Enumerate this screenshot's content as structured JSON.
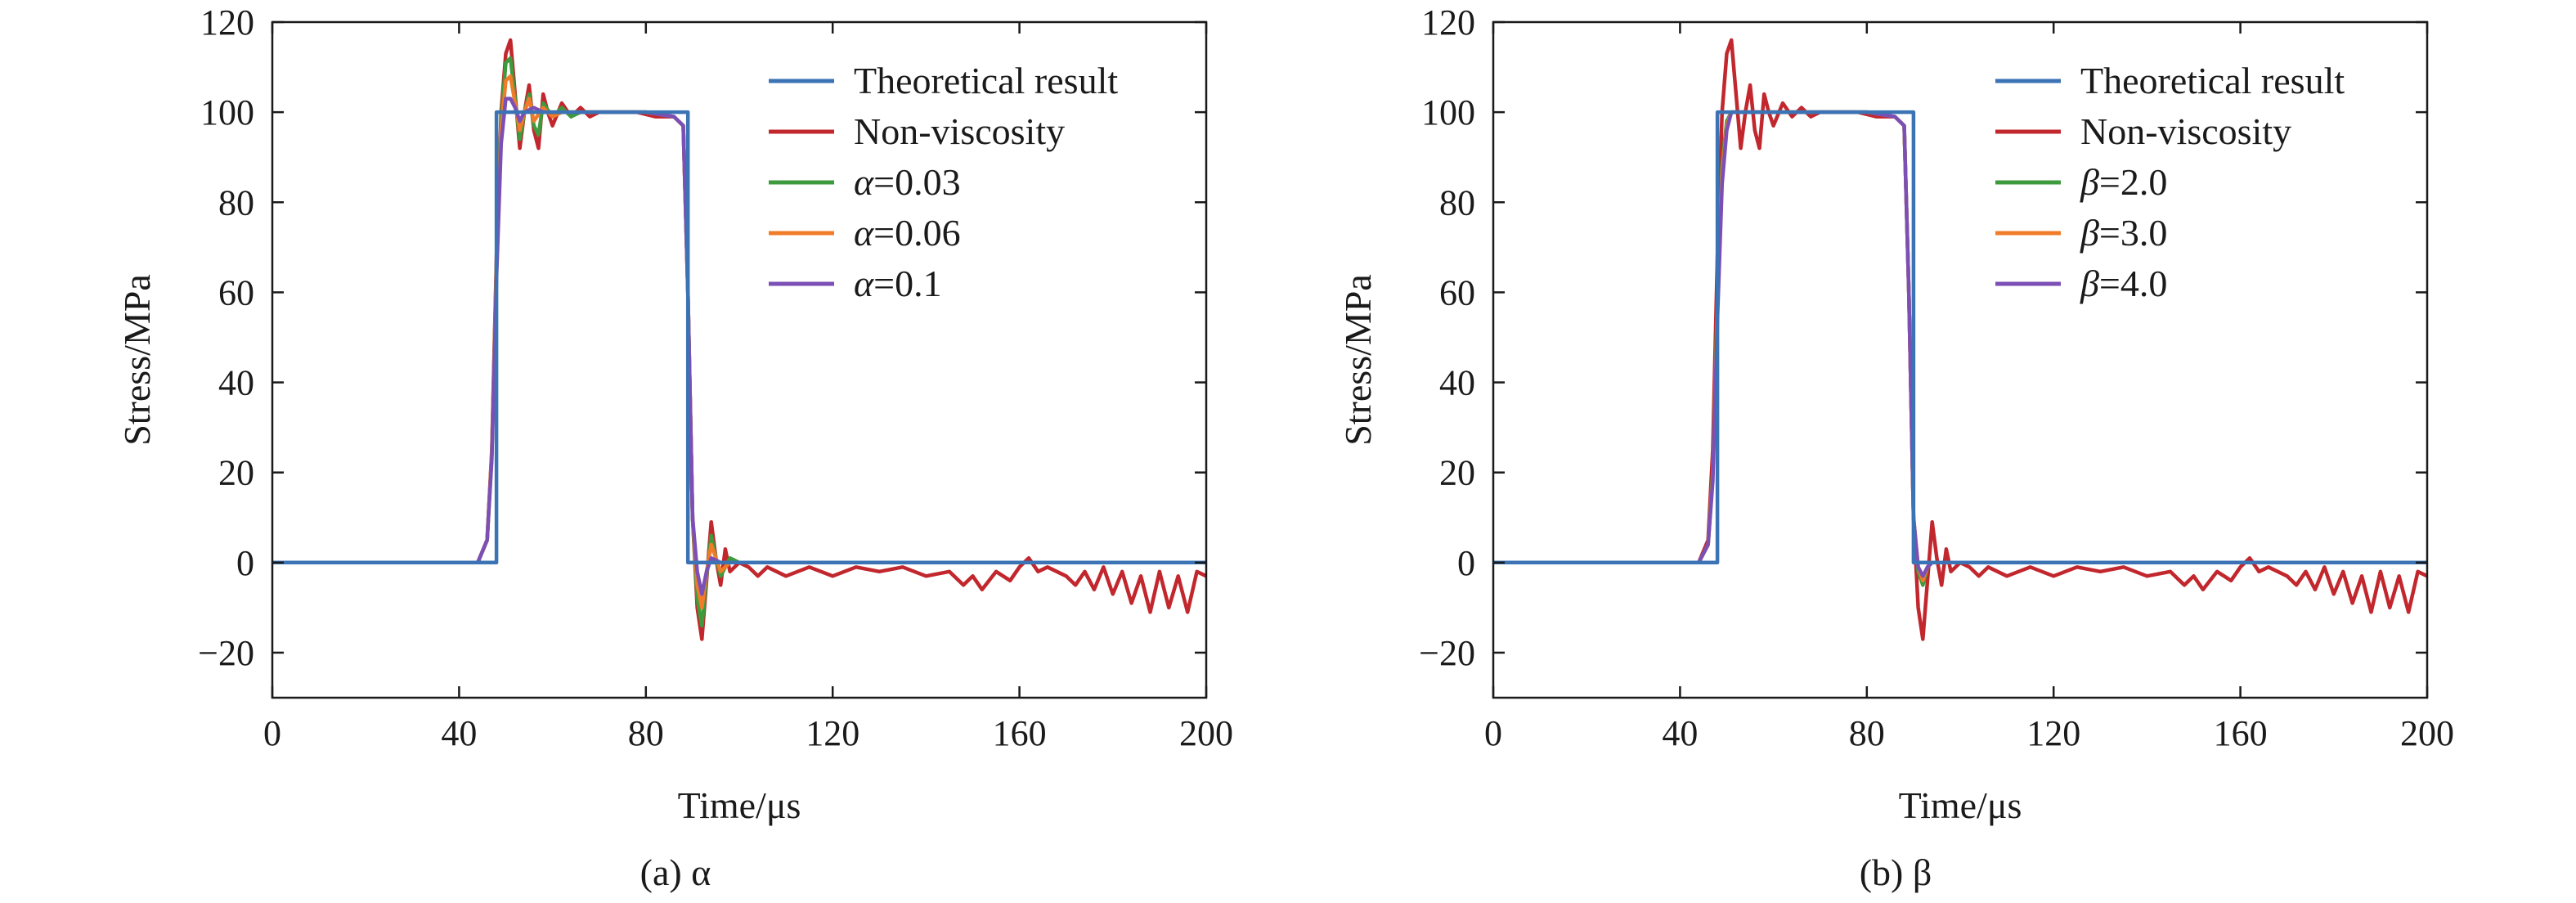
{
  "chart_data": [
    {
      "type": "line",
      "caption": "(a) α",
      "xlabel": "Time/μs",
      "ylabel": "Stress/MPa",
      "xlim": [
        0,
        200
      ],
      "ylim": [
        -30,
        120
      ],
      "xticks": [
        0,
        40,
        80,
        120,
        160,
        200
      ],
      "yticks": [
        -20,
        0,
        20,
        40,
        60,
        80,
        100,
        120
      ],
      "legend_position": "top-right",
      "grid": false,
      "series": [
        {
          "name": "Theoretical result",
          "color": "#3b73b4",
          "x": [
            0,
            48,
            48,
            89,
            89,
            200
          ],
          "y": [
            0,
            0,
            100,
            100,
            0,
            0
          ]
        },
        {
          "name": "Non-viscosity",
          "color": "#c1272d",
          "x": [
            0,
            44,
            46,
            47,
            48,
            49,
            50,
            51,
            52,
            53,
            54,
            55,
            56,
            57,
            58,
            59,
            60,
            62,
            64,
            66,
            68,
            70,
            74,
            78,
            82,
            86,
            88,
            89,
            90,
            91,
            92,
            93,
            94,
            95,
            96,
            97,
            98,
            100,
            102,
            104,
            106,
            110,
            115,
            120,
            125,
            130,
            135,
            140,
            145,
            148,
            150,
            152,
            155,
            158,
            160,
            162,
            164,
            166,
            170,
            172,
            174,
            176,
            178,
            180,
            182,
            184,
            186,
            188,
            190,
            192,
            194,
            196,
            198,
            200
          ],
          "y": [
            0,
            0,
            5,
            25,
            68,
            100,
            113,
            116,
            104,
            92,
            100,
            106,
            96,
            92,
            104,
            100,
            97,
            102,
            99,
            101,
            99,
            100,
            100,
            100,
            99,
            99,
            97,
            60,
            10,
            -10,
            -17,
            -4,
            9,
            1,
            -5,
            3,
            -2,
            0,
            -1,
            -3,
            -1,
            -3,
            -1,
            -3,
            -1,
            -2,
            -1,
            -3,
            -2,
            -5,
            -3,
            -6,
            -2,
            -4,
            -1,
            1,
            -2,
            -1,
            -3,
            -5,
            -2,
            -6,
            -1,
            -7,
            -2,
            -9,
            -3,
            -11,
            -2,
            -10,
            -3,
            -11,
            -2,
            -3
          ]
        },
        {
          "name": "α=0.03",
          "color": "#3d9b3d",
          "x": [
            0,
            44,
            46,
            47,
            48,
            49,
            50,
            51,
            52,
            53,
            54,
            55,
            56,
            57,
            58,
            60,
            62,
            64,
            66,
            70,
            80,
            86,
            88,
            89,
            90,
            91,
            92,
            93,
            94,
            95,
            96,
            98,
            100,
            104,
            110,
            200
          ],
          "y": [
            0,
            0,
            5,
            24,
            66,
            98,
            111,
            112,
            103,
            94,
            100,
            104,
            97,
            95,
            102,
            99,
            101,
            99,
            100,
            100,
            100,
            99,
            97,
            60,
            10,
            -8,
            -14,
            -3,
            6,
            1,
            -3,
            1,
            0,
            0,
            0,
            0
          ]
        },
        {
          "name": "α=0.06",
          "color": "#f07c2a",
          "x": [
            0,
            44,
            46,
            47,
            48,
            49,
            50,
            51,
            52,
            53,
            54,
            55,
            56,
            58,
            60,
            62,
            66,
            70,
            80,
            86,
            88,
            89,
            90,
            91,
            92,
            93,
            94,
            95,
            96,
            98,
            100,
            110,
            200
          ],
          "y": [
            0,
            0,
            5,
            24,
            65,
            96,
            107,
            108,
            102,
            96,
            100,
            103,
            98,
            101,
            99,
            100,
            100,
            100,
            100,
            99,
            97,
            60,
            10,
            -5,
            -10,
            -2,
            4,
            1,
            -2,
            0,
            0,
            0,
            0
          ]
        },
        {
          "name": "α=0.1",
          "color": "#7b4fb5",
          "x": [
            0,
            44,
            46,
            47,
            48,
            49,
            50,
            51,
            52,
            53,
            54,
            56,
            58,
            60,
            70,
            80,
            86,
            88,
            89,
            90,
            91,
            92,
            93,
            94,
            96,
            100,
            200
          ],
          "y": [
            0,
            0,
            5,
            23,
            63,
            93,
            103,
            103,
            101,
            98,
            100,
            101,
            100,
            100,
            100,
            100,
            99,
            97,
            60,
            10,
            -2,
            -7,
            -2,
            1,
            0,
            0,
            0
          ]
        }
      ]
    },
    {
      "type": "line",
      "caption": "(b) β",
      "xlabel": "Time/μs",
      "ylabel": "Stress/MPa",
      "xlim": [
        0,
        200
      ],
      "ylim": [
        -30,
        120
      ],
      "xticks": [
        0,
        40,
        80,
        120,
        160,
        200
      ],
      "yticks": [
        -20,
        0,
        20,
        40,
        60,
        80,
        100,
        120
      ],
      "legend_position": "top-right",
      "grid": false,
      "series": [
        {
          "name": "Theoretical result",
          "color": "#3b73b4",
          "x": [
            0,
            48,
            48,
            90,
            90,
            200
          ],
          "y": [
            0,
            0,
            100,
            100,
            0,
            0
          ]
        },
        {
          "name": "Non-viscosity",
          "color": "#c1272d",
          "x": [
            0,
            44,
            46,
            47,
            48,
            49,
            50,
            51,
            52,
            53,
            54,
            55,
            56,
            57,
            58,
            59,
            60,
            62,
            64,
            66,
            68,
            70,
            74,
            78,
            82,
            86,
            88,
            89,
            90,
            91,
            92,
            93,
            94,
            95,
            96,
            97,
            98,
            100,
            102,
            104,
            106,
            110,
            115,
            120,
            125,
            130,
            135,
            140,
            145,
            148,
            150,
            152,
            155,
            158,
            160,
            162,
            164,
            166,
            170,
            172,
            174,
            176,
            178,
            180,
            182,
            184,
            186,
            188,
            190,
            192,
            194,
            196,
            198,
            200
          ],
          "y": [
            0,
            0,
            5,
            25,
            68,
            100,
            113,
            116,
            104,
            92,
            100,
            106,
            96,
            92,
            104,
            100,
            97,
            102,
            99,
            101,
            99,
            100,
            100,
            100,
            99,
            99,
            97,
            60,
            10,
            -10,
            -17,
            -4,
            9,
            1,
            -5,
            3,
            -2,
            0,
            -1,
            -3,
            -1,
            -3,
            -1,
            -3,
            -1,
            -2,
            -1,
            -3,
            -2,
            -5,
            -3,
            -6,
            -2,
            -4,
            -1,
            1,
            -2,
            -1,
            -3,
            -5,
            -2,
            -6,
            -1,
            -7,
            -2,
            -9,
            -3,
            -11,
            -2,
            -10,
            -3,
            -11,
            -2,
            -3
          ]
        },
        {
          "name": "β=2.0",
          "color": "#3d9b3d",
          "x": [
            0,
            44,
            46,
            47,
            48,
            49,
            50,
            51,
            52,
            54,
            56,
            60,
            70,
            80,
            86,
            88,
            89,
            90,
            91,
            92,
            93,
            94,
            96,
            100,
            200
          ],
          "y": [
            0,
            0,
            4,
            20,
            58,
            88,
            98,
            100,
            100,
            100,
            100,
            100,
            100,
            100,
            99,
            97,
            60,
            10,
            -2,
            -5,
            -1,
            0,
            0,
            0,
            0
          ]
        },
        {
          "name": "β=3.0",
          "color": "#f07c2a",
          "x": [
            0,
            44,
            46,
            47,
            48,
            49,
            50,
            51,
            52,
            54,
            56,
            60,
            70,
            80,
            86,
            88,
            89,
            90,
            91,
            92,
            93,
            94,
            96,
            100,
            200
          ],
          "y": [
            0,
            0,
            4,
            19,
            56,
            86,
            97,
            100,
            100,
            100,
            100,
            100,
            100,
            100,
            99,
            97,
            60,
            10,
            -1,
            -4,
            -1,
            0,
            0,
            0,
            0
          ]
        },
        {
          "name": "β=4.0",
          "color": "#7b4fb5",
          "x": [
            0,
            44,
            46,
            47,
            48,
            49,
            50,
            51,
            52,
            54,
            56,
            60,
            70,
            80,
            86,
            88,
            89,
            90,
            91,
            92,
            93,
            94,
            96,
            100,
            200
          ],
          "y": [
            0,
            0,
            4,
            18,
            54,
            84,
            96,
            100,
            100,
            100,
            100,
            100,
            100,
            100,
            99,
            97,
            60,
            10,
            -1,
            -3,
            -1,
            0,
            0,
            0,
            0
          ]
        }
      ]
    }
  ]
}
